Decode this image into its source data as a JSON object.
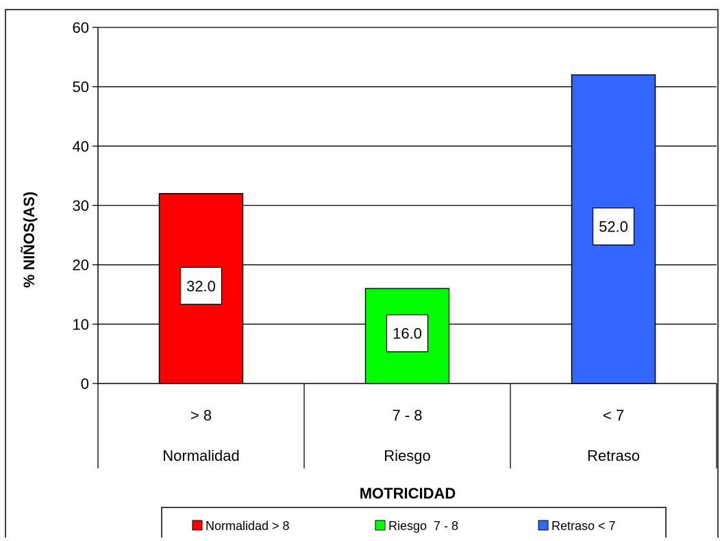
{
  "chart_data": {
    "type": "bar",
    "categories": [
      {
        "top": "> 8",
        "bottom": "Normalidad"
      },
      {
        "top": "7 - 8",
        "bottom": "Riesgo"
      },
      {
        "top": "< 7",
        "bottom": "Retraso"
      }
    ],
    "values": [
      32.0,
      16.0,
      52.0
    ],
    "data_labels": [
      "32.0",
      "16.0",
      "52.0"
    ],
    "colors": [
      "#ff0000",
      "#00ff00",
      "#3366ff"
    ],
    "xlabel": "MOTRICIDAD",
    "ylabel": "% NIÑOS(AS)",
    "ylim": [
      0,
      60
    ],
    "yticks": [
      "0",
      "10",
      "20",
      "30",
      "40",
      "50",
      "60"
    ],
    "grid": true,
    "legend": {
      "placement": "bottom",
      "entries": [
        "Normalidad > 8",
        "Riesgo  7 - 8",
        "Retraso < 7"
      ]
    }
  }
}
